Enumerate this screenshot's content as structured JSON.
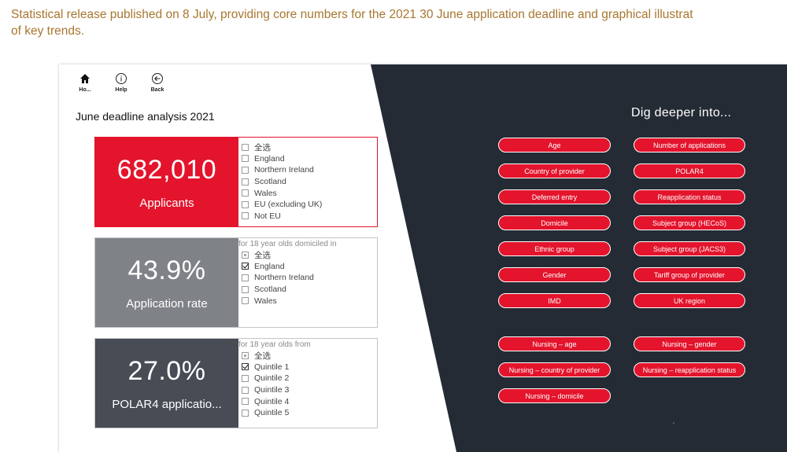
{
  "intro": {
    "line1": "Statistical release published on 8 July, providing core numbers for the 2021 30 June application deadline and graphical illustrat",
    "line2": "of key trends."
  },
  "nav": {
    "home": "Ho...",
    "help": "Help",
    "back": "Back"
  },
  "report_title": "June deadline analysis 2021",
  "cards": [
    {
      "value": "682,010",
      "label": "Applicants",
      "color": "#e3142c",
      "slicer_header": "",
      "options": [
        {
          "label": "全选",
          "state": "unchecked"
        },
        {
          "label": "England",
          "state": "unchecked"
        },
        {
          "label": "Northern Ireland",
          "state": "unchecked"
        },
        {
          "label": "Scotland",
          "state": "unchecked"
        },
        {
          "label": "Wales",
          "state": "unchecked"
        },
        {
          "label": "EU (excluding UK)",
          "state": "unchecked"
        },
        {
          "label": "Not EU",
          "state": "unchecked"
        }
      ]
    },
    {
      "value": "43.9%",
      "label": "Application rate",
      "color": "#7f8387",
      "slicer_header": "for 18 year olds domiciled in",
      "options": [
        {
          "label": "全选",
          "state": "partial"
        },
        {
          "label": "England",
          "state": "checked"
        },
        {
          "label": "Northern Ireland",
          "state": "unchecked"
        },
        {
          "label": "Scotland",
          "state": "unchecked"
        },
        {
          "label": "Wales",
          "state": "unchecked"
        }
      ]
    },
    {
      "value": "27.0%",
      "label": "POLAR4 applicatio...",
      "color": "#474c55",
      "slicer_header": "for 18 year olds from",
      "options": [
        {
          "label": "全选",
          "state": "partial"
        },
        {
          "label": "Quintile 1",
          "state": "checked"
        },
        {
          "label": "Quintile 2",
          "state": "unchecked"
        },
        {
          "label": "Quintile 3",
          "state": "unchecked"
        },
        {
          "label": "Quintile 4",
          "state": "unchecked"
        },
        {
          "label": "Quintile 5",
          "state": "unchecked"
        }
      ]
    }
  ],
  "dig_deeper": {
    "title": "Dig deeper into...",
    "left": [
      "Age",
      "Country of provider",
      "Deferred entry",
      "Domicile",
      "Ethnic group",
      "Gender",
      "IMD"
    ],
    "right": [
      "Number of applications",
      "POLAR4",
      "Reapplication status",
      "Subject group (HECoS)",
      "Subject group (JACS3)",
      "Tariff group of provider",
      "UK region"
    ],
    "nursing_left": [
      "Nursing – age",
      "Nursing – country of provider",
      "Nursing – domicile"
    ],
    "nursing_right": [
      "Nursing – gender",
      "Nursing – reapplication status"
    ]
  },
  "colors": {
    "accent_red": "#e3142c",
    "dark_panel": "#252b35",
    "intro_text": "#a8762f"
  }
}
